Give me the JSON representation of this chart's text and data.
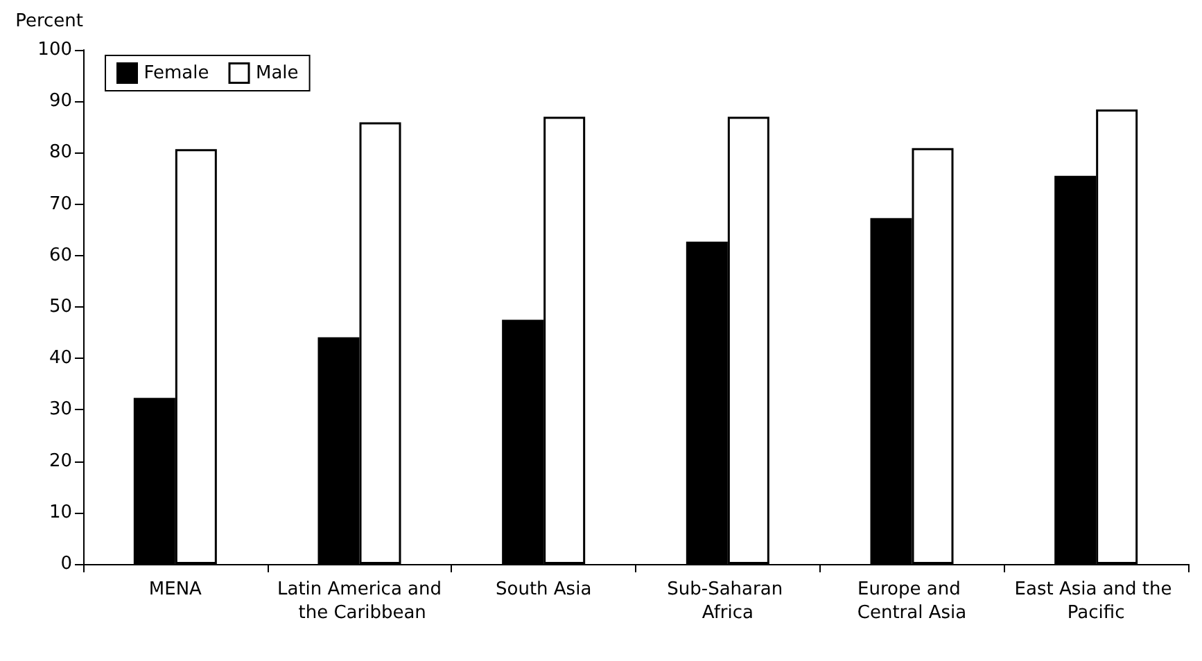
{
  "chart_data": {
    "type": "bar",
    "ylabel": "Percent",
    "categories": [
      "MENA",
      "Latin America and the Caribbean",
      "South Asia",
      "Sub-Saharan Africa",
      "Europe and Central Asia",
      "East Asia and the Pacific"
    ],
    "series": [
      {
        "name": "Female",
        "color": "#000000",
        "values": [
          32.3,
          44.1,
          47.5,
          62.7,
          67.3,
          75.5
        ]
      },
      {
        "name": "Male",
        "color": "#ffffff",
        "values": [
          80.7,
          85.9,
          87.0,
          87.0,
          80.9,
          88.4
        ]
      }
    ],
    "ylim": [
      0,
      100
    ],
    "yticks": [
      0,
      10,
      20,
      30,
      40,
      50,
      60,
      70,
      80,
      90,
      100
    ],
    "grid": false,
    "legend": "top left"
  }
}
